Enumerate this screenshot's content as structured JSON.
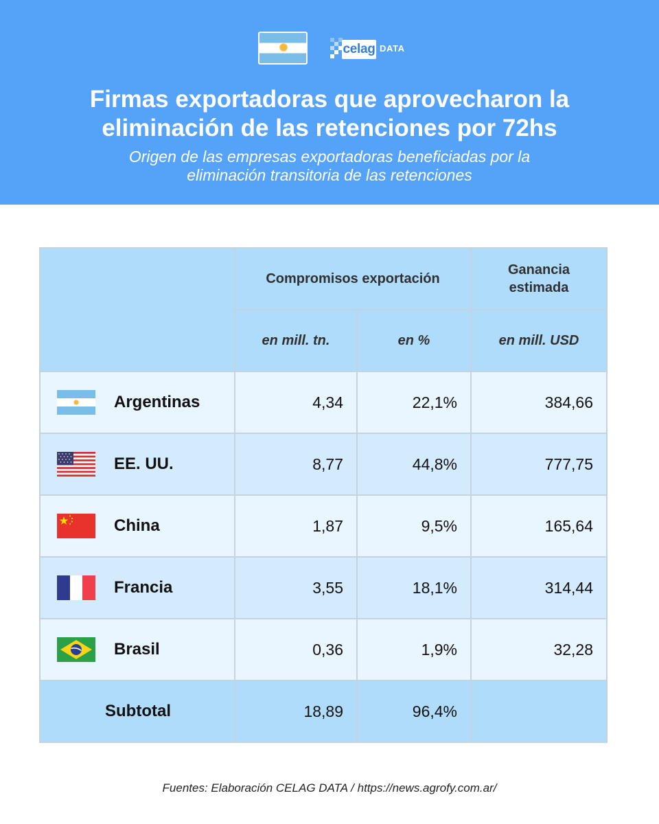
{
  "header": {
    "logos": {
      "flag_icon": "argentina-flag-icon",
      "brand": "celag",
      "brand_suffix": "DATA"
    },
    "title_line1": "Firmas exportadoras que aprovecharon la",
    "title_line2": "eliminación de las retenciones por 72hs",
    "subtitle_line1": "Origen de las empresas exportadoras beneficiadas por la",
    "subtitle_line2": "eliminación transitoria de las retenciones"
  },
  "table": {
    "group_headers": {
      "compromisos": "Compromisos exportación",
      "ganancia_line1": "Ganancia",
      "ganancia_line2": "estimada"
    },
    "sub_headers": {
      "tn": "en mill. tn.",
      "pct": "en %",
      "usd": "en mill. USD"
    },
    "rows": [
      {
        "flag": "argentina-flag-icon",
        "country": "Argentinas",
        "tn": "4,34",
        "pct": "22,1%",
        "usd": "384,66"
      },
      {
        "flag": "usa-flag-icon",
        "country": "EE. UU.",
        "tn": "8,77",
        "pct": "44,8%",
        "usd": "777,75"
      },
      {
        "flag": "china-flag-icon",
        "country": "China",
        "tn": "1,87",
        "pct": "9,5%",
        "usd": "165,64"
      },
      {
        "flag": "france-flag-icon",
        "country": "Francia",
        "tn": "3,55",
        "pct": "18,1%",
        "usd": "314,44"
      },
      {
        "flag": "brazil-flag-icon",
        "country": "Brasil",
        "tn": "0,36",
        "pct": "1,9%",
        "usd": "32,28"
      }
    ],
    "subtotal": {
      "label": "Subtotal",
      "tn": "18,89",
      "pct": "96,4%",
      "usd": ""
    }
  },
  "footer": {
    "source": "Fuentes: Elaboración CELAG DATA / https://news.agrofy.com.ar/"
  },
  "colors": {
    "header_bg": "#55a3f8",
    "table_header_bg": "#b0dcfc",
    "row_light": "#e9f5ff",
    "row_dark": "#d3ebfd"
  }
}
